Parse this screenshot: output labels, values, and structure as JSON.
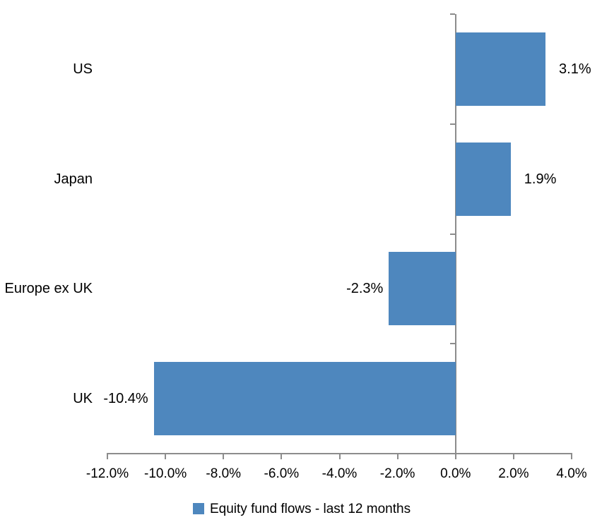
{
  "chart_data": {
    "type": "bar",
    "orientation": "horizontal",
    "title": "",
    "xlabel": "",
    "ylabel": "",
    "categories": [
      "US",
      "Japan",
      "Europe ex UK",
      "UK"
    ],
    "series": [
      {
        "name": "Equity fund flows - last 12 months",
        "values": [
          3.1,
          1.9,
          -2.3,
          -10.4
        ],
        "data_labels": [
          "3.1%",
          "1.9%",
          "-2.3%",
          "-10.4%"
        ]
      }
    ],
    "x_ticks": [
      -12,
      -10,
      -8,
      -6,
      -4,
      -2,
      0,
      2,
      4
    ],
    "x_tick_labels": [
      "-12.0%",
      "-10.0%",
      "-8.0%",
      "-6.0%",
      "-4.0%",
      "-2.0%",
      "0.0%",
      "2.0%",
      "4.0%"
    ],
    "xlim": [
      -12,
      4
    ],
    "grid": false,
    "legend_position": "bottom",
    "colors": {
      "bar": "#4e87be",
      "axis": "#8c8c8c",
      "text": "#000000"
    }
  },
  "legend": {
    "label": "Equity fund flows - last 12 months"
  }
}
